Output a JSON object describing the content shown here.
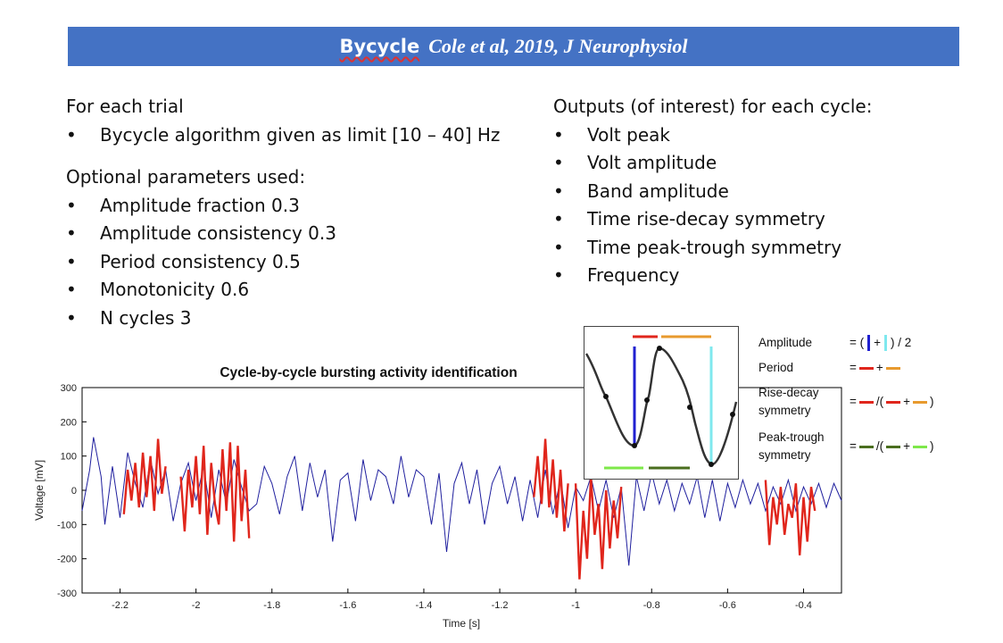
{
  "banner": {
    "title": "Bycycle",
    "citation": "Cole et al, 2019, J Neurophysiol"
  },
  "left": {
    "section1_title": "For each trial",
    "section1_items": [
      "Bycycle algorithm given as limit [10 – 40] Hz"
    ],
    "section2_title": "Optional parameters used:",
    "section2_items": [
      "Amplitude fraction 0.3",
      "Amplitude consistency 0.3",
      "Period consistency 0.5",
      "Monotonicity 0.6",
      "N cycles 3"
    ]
  },
  "right": {
    "title": "Outputs (of interest) for each cycle:",
    "items": [
      "Volt peak",
      "Volt amplitude",
      "Band amplitude",
      "Time rise-decay symmetry",
      "Time peak-trough symmetry",
      "Frequency"
    ]
  },
  "legend": {
    "rows": [
      {
        "label": "Amplitude",
        "formula_prefix": "= (",
        "formula_plus": "+",
        "formula_suffix": ") / 2"
      },
      {
        "label": "Period",
        "formula_prefix": "=",
        "formula_plus": "+"
      },
      {
        "label": "Rise-decay symmetry",
        "formula_prefix": "=",
        "formula_mid": "/(",
        "formula_plus": "+",
        "formula_suffix": ")"
      },
      {
        "label": "Peak-trough symmetry",
        "formula_prefix": "=",
        "formula_mid": "/(",
        "formula_plus": "+",
        "formula_suffix": ")"
      }
    ],
    "colors": {
      "blue": "#1f1fd0",
      "cyan": "#7fe8ee",
      "red": "#e0261c",
      "orange": "#e89a2e",
      "dark_green": "#4a6e1e",
      "light_green": "#7ee84a"
    }
  },
  "chart_data": {
    "type": "line",
    "title": "Cycle-by-cycle bursting activity identification",
    "xlabel": "Time [s]",
    "ylabel": "Voltage [mV]",
    "xlim": [
      -2.3,
      -0.3
    ],
    "ylim": [
      -300,
      300
    ],
    "xticks": [
      "-2.2",
      "-2",
      "-1.8",
      "-1.6",
      "-1.4",
      "-1.2",
      "-1",
      "-0.8",
      "-0.6",
      "-0.4"
    ],
    "yticks": [
      "300",
      "200",
      "100",
      "0",
      "-100",
      "-200",
      "-300"
    ],
    "series": [
      {
        "color": "#1f1f9e",
        "x": [
          -2.3,
          -2.28,
          -2.27,
          -2.25,
          -2.24,
          -2.22,
          -2.2,
          -2.18,
          -2.16,
          -2.14,
          -2.12,
          -2.1,
          -2.08,
          -2.06,
          -2.04,
          -2.02,
          -2.0,
          -1.98,
          -1.96,
          -1.94,
          -1.92,
          -1.9,
          -1.88,
          -1.86,
          -1.84,
          -1.82,
          -1.8,
          -1.78,
          -1.76,
          -1.74,
          -1.72,
          -1.7,
          -1.68,
          -1.66,
          -1.64,
          -1.62,
          -1.6,
          -1.58,
          -1.56,
          -1.54,
          -1.52,
          -1.5,
          -1.48,
          -1.46,
          -1.44,
          -1.42,
          -1.4,
          -1.38,
          -1.36,
          -1.34,
          -1.32,
          -1.3,
          -1.28,
          -1.26,
          -1.24,
          -1.22,
          -1.2,
          -1.18,
          -1.16,
          -1.14,
          -1.12,
          -1.1,
          -1.08,
          -1.06,
          -1.04,
          -1.02,
          -1.0,
          -0.98,
          -0.96,
          -0.94,
          -0.92,
          -0.9,
          -0.88,
          -0.86,
          -0.84,
          -0.82,
          -0.8,
          -0.78,
          -0.76,
          -0.74,
          -0.72,
          -0.7,
          -0.68,
          -0.66,
          -0.64,
          -0.62,
          -0.6,
          -0.58,
          -0.56,
          -0.54,
          -0.52,
          -0.5,
          -0.48,
          -0.46,
          -0.44,
          -0.42,
          -0.4,
          -0.38,
          -0.36,
          -0.34,
          -0.32,
          -0.3
        ],
        "y": [
          -60,
          60,
          155,
          40,
          -100,
          70,
          -80,
          110,
          20,
          -50,
          90,
          -10,
          60,
          -90,
          20,
          80,
          -30,
          70,
          -80,
          60,
          -40,
          90,
          10,
          -60,
          -40,
          70,
          20,
          -70,
          40,
          100,
          -60,
          80,
          -20,
          60,
          -150,
          30,
          50,
          -90,
          90,
          -30,
          60,
          40,
          -40,
          100,
          -20,
          60,
          40,
          -100,
          50,
          -180,
          20,
          80,
          -40,
          60,
          -100,
          20,
          70,
          -40,
          40,
          -90,
          30,
          -80,
          60,
          -70,
          30,
          -110,
          10,
          -30,
          40,
          -60,
          30,
          -80,
          10,
          -220,
          40,
          -60,
          50,
          -40,
          30,
          -60,
          20,
          -40,
          40,
          -80,
          30,
          -90,
          20,
          -50,
          30,
          -40,
          20,
          -60,
          10,
          -40,
          30,
          -60,
          10,
          -40,
          20,
          -50,
          20,
          -30
        ]
      },
      {
        "color": "#e0261c",
        "segments": [
          {
            "x": [
              -2.19,
              -2.18,
              -2.17,
              -2.16,
              -2.15,
              -2.14,
              -2.13,
              -2.12,
              -2.11,
              -2.1,
              -2.09,
              -2.08
            ],
            "y": [
              -70,
              60,
              -30,
              80,
              -50,
              110,
              -20,
              100,
              -60,
              150,
              -10,
              70
            ]
          },
          {
            "x": [
              -2.04,
              -2.03,
              -2.02,
              -2.01,
              -2.0,
              -1.99,
              -1.98,
              -1.97,
              -1.96,
              -1.95,
              -1.94,
              -1.93,
              -1.92,
              -1.91,
              -1.9,
              -1.89,
              -1.88,
              -1.87,
              -1.86
            ],
            "y": [
              40,
              -120,
              60,
              -50,
              100,
              -70,
              130,
              -130,
              80,
              -40,
              -100,
              120,
              -60,
              140,
              -150,
              130,
              -90,
              60,
              -140
            ]
          },
          {
            "x": [
              -1.11,
              -1.1,
              -1.09,
              -1.08,
              -1.07,
              -1.06,
              -1.05,
              -1.04,
              -1.03,
              -1.02
            ],
            "y": [
              -20,
              100,
              -40,
              150,
              -50,
              90,
              -80,
              60,
              -120,
              20
            ]
          },
          {
            "x": [
              -1.0,
              -0.99,
              -0.98,
              -0.97,
              -0.96,
              -0.95,
              -0.94,
              -0.93,
              -0.92,
              -0.91,
              -0.9,
              -0.89,
              -0.88
            ],
            "y": [
              20,
              -260,
              -60,
              -200,
              40,
              -130,
              -40,
              -230,
              0,
              -170,
              -30,
              -140,
              10
            ]
          },
          {
            "x": [
              -0.5,
              -0.49,
              -0.48,
              -0.47,
              -0.46,
              -0.45,
              -0.44,
              -0.43,
              -0.42,
              -0.41,
              -0.4,
              -0.39,
              -0.38,
              -0.37
            ],
            "y": [
              30,
              -160,
              -20,
              -100,
              10,
              -130,
              -40,
              -80,
              20,
              -190,
              -20,
              -150,
              10,
              -60
            ]
          }
        ]
      }
    ]
  }
}
